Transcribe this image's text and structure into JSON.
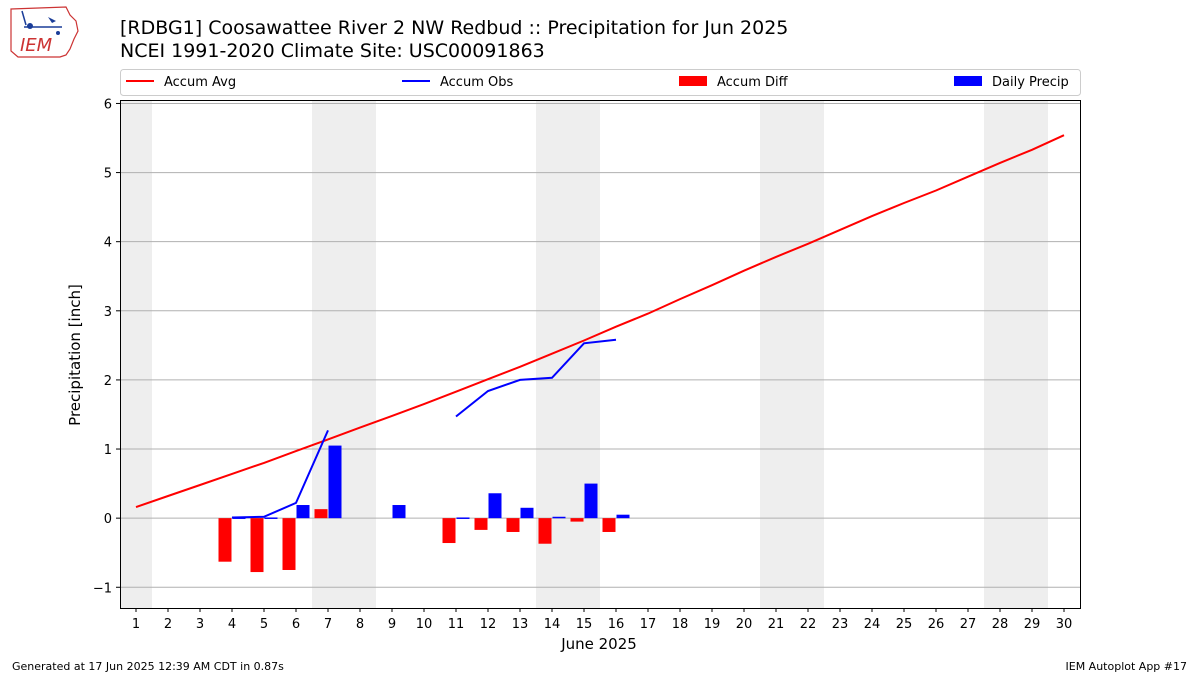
{
  "header": {
    "logo_text": "IEM",
    "title_line1": "[RDBG1] Coosawattee River 2 NW Redbud :: Precipitation for Jun 2025",
    "title_line2": "NCEI 1991-2020 Climate Site: USC00091863"
  },
  "footer": {
    "generated": "Generated at 17 Jun 2025 12:39 AM CDT in 0.87s",
    "app": "IEM Autoplot App #17"
  },
  "colors": {
    "accum_avg": "#ff0000",
    "accum_obs": "#0000ff",
    "accum_diff": "#ff0000",
    "daily_precip": "#0000ff",
    "weekend_shade": "#eeeeee",
    "grid": "#b0b0b0"
  },
  "chart_data": {
    "type": "bar",
    "title": "[RDBG1] Coosawattee River 2 NW Redbud :: Precipitation for Jun 2025",
    "subtitle": "NCEI 1991-2020 Climate Site: USC00091863",
    "xlabel": "June 2025",
    "ylabel": "Precipitation [inch]",
    "xlim": [
      0.5,
      30.5
    ],
    "ylim": [
      -1.3,
      6.05
    ],
    "x_ticks": [
      1,
      2,
      3,
      4,
      5,
      6,
      7,
      8,
      9,
      10,
      11,
      12,
      13,
      14,
      15,
      16,
      17,
      18,
      19,
      20,
      21,
      22,
      23,
      24,
      25,
      26,
      27,
      28,
      29,
      30
    ],
    "y_ticks": [
      -1,
      0,
      1,
      2,
      3,
      4,
      5,
      6
    ],
    "grid": "y",
    "legend_position": "top",
    "legend": [
      "Accum Avg",
      "Accum Obs",
      "Accum Diff",
      "Daily Precip"
    ],
    "weekend_days": [
      1,
      7,
      8,
      14,
      15,
      21,
      22,
      28,
      29
    ],
    "series": [
      {
        "name": "Accum Avg",
        "kind": "line",
        "x": [
          1,
          2,
          3,
          4,
          5,
          6,
          7,
          8,
          9,
          10,
          11,
          12,
          13,
          14,
          15,
          16,
          17,
          18,
          19,
          20,
          21,
          22,
          23,
          24,
          25,
          26,
          27,
          28,
          29,
          30
        ],
        "values": [
          0.16,
          0.32,
          0.48,
          0.64,
          0.8,
          0.97,
          1.14,
          1.31,
          1.48,
          1.65,
          1.83,
          2.01,
          2.19,
          2.38,
          2.57,
          2.77,
          2.96,
          3.17,
          3.37,
          3.58,
          3.78,
          3.97,
          4.17,
          4.37,
          4.56,
          4.74,
          4.94,
          5.14,
          5.33,
          5.54
        ]
      },
      {
        "name": "Accum Obs",
        "kind": "line",
        "x": [
          4,
          5,
          6,
          7,
          null,
          11,
          12,
          13,
          14,
          15,
          16
        ],
        "values": [
          0.01,
          0.02,
          0.22,
          1.27,
          null,
          1.47,
          1.84,
          2.0,
          2.03,
          2.53,
          2.58
        ]
      },
      {
        "name": "Accum Diff",
        "kind": "bar",
        "x": [
          4,
          5,
          6,
          7,
          11,
          12,
          13,
          14,
          15,
          16
        ],
        "values": [
          -0.63,
          -0.78,
          -0.75,
          0.13,
          -0.36,
          -0.17,
          -0.2,
          -0.37,
          -0.05,
          -0.2
        ]
      },
      {
        "name": "Daily Precip",
        "kind": "bar",
        "x": [
          4,
          5,
          6,
          7,
          9,
          11,
          12,
          13,
          14,
          15,
          16
        ],
        "values": [
          0.01,
          0.01,
          0.19,
          1.05,
          0.19,
          0.01,
          0.36,
          0.15,
          0.02,
          0.5,
          0.05
        ]
      }
    ]
  }
}
